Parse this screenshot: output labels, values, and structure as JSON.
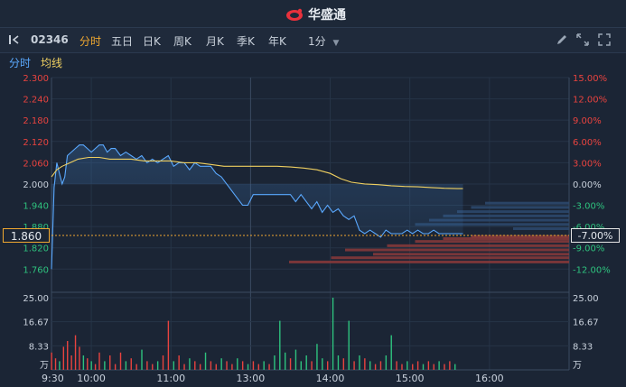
{
  "app": {
    "name": "华盛通",
    "brand_color": "#e8313c"
  },
  "toolbar": {
    "code": "02346",
    "tabs": [
      {
        "label": "分时",
        "active": true
      },
      {
        "label": "五日",
        "active": false
      },
      {
        "label": "日K",
        "active": false
      },
      {
        "label": "周K",
        "active": false
      },
      {
        "label": "月K",
        "active": false
      },
      {
        "label": "季K",
        "active": false
      },
      {
        "label": "年K",
        "active": false
      }
    ],
    "interval": "1分",
    "icons": [
      "collapse-icon",
      "pencil-icon",
      "expand-icon",
      "fullscreen-icon"
    ]
  },
  "subbar": {
    "timeshare": "分时",
    "avg_line": "均线"
  },
  "current": {
    "price": "1.860",
    "change": "-7.00%"
  },
  "colors": {
    "up": "#e8433f",
    "down": "#2ec27e",
    "price_line": "#5aa9ff",
    "avg_line": "#f0d060",
    "accent": "#f0a830"
  },
  "chart_data": {
    "type": "line",
    "prev_close": 2.0,
    "y_ticks_left": [
      "2.300",
      "2.240",
      "2.180",
      "2.120",
      "2.060",
      "2.000",
      "1.940",
      "1.880",
      "1.820",
      "1.760"
    ],
    "y_ticks_right": [
      "15.00%",
      "12.00%",
      "9.00%",
      "6.00%",
      "3.00%",
      "0.00%",
      "-3.00%",
      "-6.00%",
      "-9.00%",
      "-12.00%"
    ],
    "x_ticks": [
      "9:30",
      "10:00",
      "11:00",
      "13:00",
      "14:00",
      "15:00",
      "16:00"
    ],
    "volume_ticks_left": [
      "25.00",
      "16.67",
      "8.33",
      "万"
    ],
    "volume_ticks_right": [
      "25.00",
      "16.67",
      "8.33",
      "万"
    ],
    "price_series": [
      [
        0,
        1.76
      ],
      [
        2,
        1.99
      ],
      [
        4,
        2.06
      ],
      [
        6,
        2.03
      ],
      [
        8,
        2.0
      ],
      [
        10,
        2.02
      ],
      [
        12,
        2.08
      ],
      [
        15,
        2.09
      ],
      [
        18,
        2.1
      ],
      [
        21,
        2.11
      ],
      [
        24,
        2.11
      ],
      [
        27,
        2.1
      ],
      [
        30,
        2.09
      ],
      [
        33,
        2.1
      ],
      [
        36,
        2.11
      ],
      [
        39,
        2.11
      ],
      [
        42,
        2.09
      ],
      [
        45,
        2.1
      ],
      [
        48,
        2.1
      ],
      [
        52,
        2.08
      ],
      [
        56,
        2.09
      ],
      [
        60,
        2.08
      ],
      [
        64,
        2.07
      ],
      [
        68,
        2.08
      ],
      [
        72,
        2.06
      ],
      [
        76,
        2.07
      ],
      [
        80,
        2.06
      ],
      [
        84,
        2.07
      ],
      [
        88,
        2.08
      ],
      [
        92,
        2.05
      ],
      [
        96,
        2.06
      ],
      [
        100,
        2.06
      ],
      [
        104,
        2.04
      ],
      [
        108,
        2.06
      ],
      [
        112,
        2.05
      ],
      [
        116,
        2.05
      ],
      [
        120,
        2.05
      ],
      [
        124,
        2.03
      ],
      [
        128,
        2.02
      ],
      [
        132,
        2.0
      ],
      [
        136,
        1.98
      ],
      [
        140,
        1.96
      ],
      [
        144,
        1.94
      ],
      [
        148,
        1.94
      ],
      [
        152,
        1.97
      ],
      [
        156,
        1.97
      ],
      [
        160,
        1.97
      ],
      [
        164,
        1.97
      ],
      [
        168,
        1.97
      ],
      [
        172,
        1.97
      ],
      [
        176,
        1.97
      ],
      [
        180,
        1.97
      ],
      [
        184,
        1.95
      ],
      [
        188,
        1.97
      ],
      [
        192,
        1.95
      ],
      [
        196,
        1.93
      ],
      [
        200,
        1.95
      ],
      [
        204,
        1.92
      ],
      [
        208,
        1.94
      ],
      [
        212,
        1.92
      ],
      [
        216,
        1.93
      ],
      [
        220,
        1.91
      ],
      [
        224,
        1.9
      ],
      [
        228,
        1.91
      ],
      [
        232,
        1.87
      ],
      [
        236,
        1.86
      ],
      [
        240,
        1.87
      ],
      [
        244,
        1.86
      ],
      [
        248,
        1.85
      ],
      [
        252,
        1.87
      ],
      [
        256,
        1.86
      ],
      [
        260,
        1.86
      ],
      [
        264,
        1.86
      ],
      [
        268,
        1.87
      ],
      [
        272,
        1.86
      ],
      [
        276,
        1.87
      ],
      [
        280,
        1.86
      ],
      [
        284,
        1.86
      ],
      [
        288,
        1.87
      ],
      [
        292,
        1.86
      ],
      [
        296,
        1.86
      ],
      [
        300,
        1.86
      ],
      [
        304,
        1.86
      ],
      [
        310,
        1.86
      ]
    ],
    "avg_series": [
      [
        0,
        2.02
      ],
      [
        4,
        2.04
      ],
      [
        8,
        2.05
      ],
      [
        14,
        2.06
      ],
      [
        20,
        2.07
      ],
      [
        28,
        2.075
      ],
      [
        36,
        2.075
      ],
      [
        44,
        2.07
      ],
      [
        52,
        2.07
      ],
      [
        60,
        2.07
      ],
      [
        70,
        2.065
      ],
      [
        80,
        2.065
      ],
      [
        90,
        2.065
      ],
      [
        100,
        2.06
      ],
      [
        110,
        2.06
      ],
      [
        120,
        2.055
      ],
      [
        130,
        2.05
      ],
      [
        140,
        2.05
      ],
      [
        150,
        2.05
      ],
      [
        160,
        2.05
      ],
      [
        170,
        2.05
      ],
      [
        180,
        2.048
      ],
      [
        190,
        2.045
      ],
      [
        200,
        2.04
      ],
      [
        210,
        2.03
      ],
      [
        218,
        2.015
      ],
      [
        226,
        2.005
      ],
      [
        236,
        2.0
      ],
      [
        246,
        1.998
      ],
      [
        256,
        1.995
      ],
      [
        266,
        1.993
      ],
      [
        276,
        1.992
      ],
      [
        286,
        1.99
      ],
      [
        296,
        1.988
      ],
      [
        306,
        1.987
      ],
      [
        310,
        1.987
      ]
    ],
    "volume": [
      {
        "t": 0,
        "v": 6,
        "c": "up"
      },
      {
        "t": 3,
        "v": 4,
        "c": "up"
      },
      {
        "t": 6,
        "v": 3,
        "c": "down"
      },
      {
        "t": 9,
        "v": 8,
        "c": "up"
      },
      {
        "t": 12,
        "v": 10,
        "c": "up"
      },
      {
        "t": 15,
        "v": 5,
        "c": "up"
      },
      {
        "t": 18,
        "v": 12,
        "c": "up"
      },
      {
        "t": 21,
        "v": 8,
        "c": "up"
      },
      {
        "t": 24,
        "v": 5,
        "c": "down"
      },
      {
        "t": 27,
        "v": 4,
        "c": "up"
      },
      {
        "t": 30,
        "v": 3,
        "c": "down"
      },
      {
        "t": 33,
        "v": 2,
        "c": "up"
      },
      {
        "t": 36,
        "v": 6,
        "c": "up"
      },
      {
        "t": 40,
        "v": 3,
        "c": "down"
      },
      {
        "t": 44,
        "v": 5,
        "c": "up"
      },
      {
        "t": 48,
        "v": 2,
        "c": "up"
      },
      {
        "t": 52,
        "v": 6,
        "c": "up"
      },
      {
        "t": 56,
        "v": 3,
        "c": "down"
      },
      {
        "t": 60,
        "v": 4,
        "c": "up"
      },
      {
        "t": 64,
        "v": 2,
        "c": "up"
      },
      {
        "t": 68,
        "v": 7,
        "c": "down"
      },
      {
        "t": 72,
        "v": 3,
        "c": "up"
      },
      {
        "t": 76,
        "v": 2,
        "c": "up"
      },
      {
        "t": 80,
        "v": 3,
        "c": "down"
      },
      {
        "t": 84,
        "v": 5,
        "c": "up"
      },
      {
        "t": 88,
        "v": 17,
        "c": "up"
      },
      {
        "t": 92,
        "v": 3,
        "c": "down"
      },
      {
        "t": 96,
        "v": 5,
        "c": "up"
      },
      {
        "t": 100,
        "v": 2,
        "c": "up"
      },
      {
        "t": 104,
        "v": 4,
        "c": "down"
      },
      {
        "t": 108,
        "v": 3,
        "c": "up"
      },
      {
        "t": 112,
        "v": 2,
        "c": "up"
      },
      {
        "t": 116,
        "v": 6,
        "c": "down"
      },
      {
        "t": 120,
        "v": 3,
        "c": "up"
      },
      {
        "t": 124,
        "v": 2,
        "c": "up"
      },
      {
        "t": 128,
        "v": 4,
        "c": "down"
      },
      {
        "t": 132,
        "v": 3,
        "c": "up"
      },
      {
        "t": 136,
        "v": 2,
        "c": "up"
      },
      {
        "t": 140,
        "v": 4,
        "c": "down"
      },
      {
        "t": 144,
        "v": 3,
        "c": "up"
      },
      {
        "t": 148,
        "v": 2,
        "c": "down"
      },
      {
        "t": 152,
        "v": 3,
        "c": "up"
      },
      {
        "t": 156,
        "v": 2,
        "c": "up"
      },
      {
        "t": 160,
        "v": 3,
        "c": "down"
      },
      {
        "t": 164,
        "v": 2,
        "c": "up"
      },
      {
        "t": 168,
        "v": 5,
        "c": "down"
      },
      {
        "t": 172,
        "v": 17,
        "c": "down"
      },
      {
        "t": 176,
        "v": 6,
        "c": "down"
      },
      {
        "t": 180,
        "v": 4,
        "c": "up"
      },
      {
        "t": 184,
        "v": 7,
        "c": "down"
      },
      {
        "t": 188,
        "v": 3,
        "c": "down"
      },
      {
        "t": 192,
        "v": 5,
        "c": "down"
      },
      {
        "t": 196,
        "v": 3,
        "c": "up"
      },
      {
        "t": 200,
        "v": 9,
        "c": "down"
      },
      {
        "t": 204,
        "v": 4,
        "c": "down"
      },
      {
        "t": 208,
        "v": 3,
        "c": "up"
      },
      {
        "t": 212,
        "v": 25,
        "c": "down"
      },
      {
        "t": 216,
        "v": 5,
        "c": "down"
      },
      {
        "t": 220,
        "v": 4,
        "c": "up"
      },
      {
        "t": 224,
        "v": 17,
        "c": "down"
      },
      {
        "t": 228,
        "v": 3,
        "c": "up"
      },
      {
        "t": 232,
        "v": 5,
        "c": "down"
      },
      {
        "t": 236,
        "v": 4,
        "c": "up"
      },
      {
        "t": 240,
        "v": 3,
        "c": "down"
      },
      {
        "t": 244,
        "v": 2,
        "c": "up"
      },
      {
        "t": 248,
        "v": 3,
        "c": "up"
      },
      {
        "t": 252,
        "v": 5,
        "c": "down"
      },
      {
        "t": 256,
        "v": 12,
        "c": "down"
      },
      {
        "t": 260,
        "v": 3,
        "c": "up"
      },
      {
        "t": 264,
        "v": 2,
        "c": "up"
      },
      {
        "t": 268,
        "v": 3,
        "c": "down"
      },
      {
        "t": 272,
        "v": 2,
        "c": "up"
      },
      {
        "t": 276,
        "v": 3,
        "c": "up"
      },
      {
        "t": 280,
        "v": 2,
        "c": "down"
      },
      {
        "t": 284,
        "v": 3,
        "c": "up"
      },
      {
        "t": 288,
        "v": 2,
        "c": "up"
      },
      {
        "t": 292,
        "v": 3,
        "c": "down"
      },
      {
        "t": 296,
        "v": 2,
        "c": "up"
      },
      {
        "t": 300,
        "v": 3,
        "c": "up"
      },
      {
        "t": 304,
        "v": 2,
        "c": "down"
      }
    ],
    "order_book_bars": [
      {
        "side": "down",
        "level": 1.946,
        "size": 0.3
      },
      {
        "side": "down",
        "level": 1.934,
        "size": 0.35
      },
      {
        "side": "down",
        "level": 1.922,
        "size": 0.4
      },
      {
        "side": "down",
        "level": 1.91,
        "size": 0.45
      },
      {
        "side": "down",
        "level": 1.898,
        "size": 0.5
      },
      {
        "side": "down",
        "level": 1.886,
        "size": 0.55
      },
      {
        "side": "down",
        "level": 1.874,
        "size": 0.2
      },
      {
        "side": "up",
        "level": 1.852,
        "size": 0.35
      },
      {
        "side": "up",
        "level": 1.846,
        "size": 0.45
      },
      {
        "side": "up",
        "level": 1.838,
        "size": 0.55
      },
      {
        "side": "up",
        "level": 1.826,
        "size": 0.65
      },
      {
        "side": "up",
        "level": 1.814,
        "size": 0.8
      },
      {
        "side": "up",
        "level": 1.802,
        "size": 0.7
      },
      {
        "side": "up",
        "level": 1.792,
        "size": 0.85
      },
      {
        "side": "up",
        "level": 1.78,
        "size": 1.0
      }
    ]
  }
}
